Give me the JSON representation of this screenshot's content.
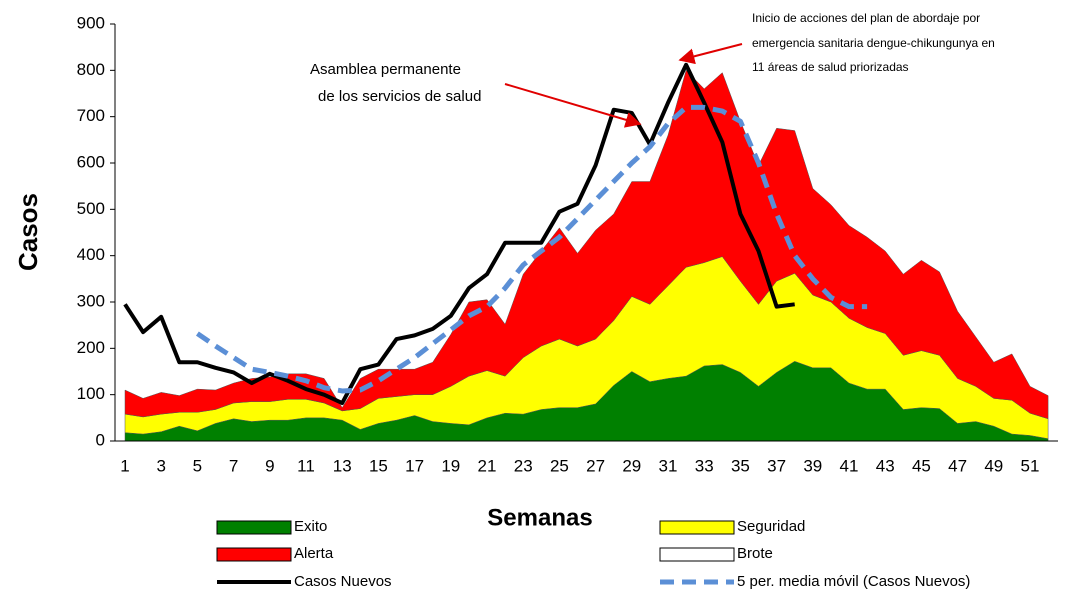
{
  "chart_data": {
    "type": "stacked_area_line",
    "y_label": "Casos",
    "x_label": "Semanas",
    "annotations": [
      [
        "Asamblea permanente",
        "de los servicios de salud"
      ],
      [
        "Inicio de acciones del plan de abordaje por",
        "emergencia sanitaria dengue-chikungunya en",
        "11 áreas de salud priorizadas"
      ]
    ],
    "categories": [
      1,
      null,
      3,
      null,
      5,
      null,
      7,
      null,
      9,
      null,
      11,
      null,
      13,
      null,
      15,
      null,
      17,
      null,
      19,
      null,
      21,
      null,
      23,
      null,
      25,
      null,
      27,
      null,
      29,
      null,
      31,
      null,
      33,
      null,
      35,
      null,
      37,
      null,
      39,
      null,
      41,
      null,
      43,
      null,
      45,
      null,
      47,
      null,
      49,
      null,
      51,
      null
    ],
    "ylim": [
      0,
      900
    ],
    "yticks": [
      0,
      100,
      200,
      300,
      400,
      500,
      600,
      700,
      800,
      900
    ],
    "series": [
      {
        "name": "Exito",
        "color": "#008000",
        "kind": "area",
        "values": [
          18,
          15,
          20,
          32,
          22,
          38,
          48,
          42,
          45,
          45,
          50,
          50,
          45,
          25,
          38,
          45,
          55,
          42,
          38,
          35,
          50,
          60,
          58,
          68,
          72,
          72,
          80,
          120,
          150,
          128,
          135,
          140,
          162,
          165,
          148,
          118,
          148,
          172,
          158,
          158,
          125,
          112,
          112,
          68,
          72,
          70,
          38,
          42,
          32,
          15,
          12,
          5
        ]
      },
      {
        "name": "Seguridad",
        "color": "#ffff00",
        "kind": "area",
        "values": [
          40,
          37,
          38,
          30,
          40,
          30,
          34,
          43,
          40,
          45,
          40,
          32,
          20,
          45,
          54,
          51,
          45,
          58,
          80,
          105,
          102,
          80,
          122,
          137,
          148,
          133,
          140,
          140,
          162,
          167,
          200,
          235,
          223,
          233,
          197,
          177,
          197,
          190,
          157,
          142,
          140,
          133,
          120,
          117,
          123,
          115,
          97,
          76,
          60,
          73,
          48,
          43
        ]
      },
      {
        "name": "Alerta",
        "color": "#ff0000",
        "kind": "area",
        "values": [
          52,
          40,
          47,
          36,
          50,
          42,
          43,
          50,
          53,
          55,
          55,
          53,
          7,
          65,
          63,
          59,
          55,
          70,
          112,
          160,
          153,
          112,
          180,
          205,
          240,
          200,
          235,
          230,
          248,
          265,
          325,
          425,
          375,
          397,
          345,
          300,
          330,
          308,
          230,
          210,
          200,
          195,
          178,
          175,
          195,
          180,
          145,
          107,
          78,
          100,
          58,
          50
        ]
      },
      {
        "name": "Brote",
        "color": "#ffffff",
        "kind": "legend"
      },
      {
        "name": "Casos Nuevos",
        "color": "#000000",
        "kind": "line",
        "values": [
          295,
          235,
          268,
          170,
          170,
          158,
          148,
          125,
          145,
          130,
          112,
          100,
          82,
          155,
          165,
          220,
          228,
          242,
          270,
          330,
          360,
          428,
          428,
          428,
          495,
          512,
          595,
          715,
          708,
          640,
          730,
          812,
          730,
          645,
          490,
          410,
          290,
          295,
          null,
          null,
          null,
          null,
          null,
          null,
          null,
          null,
          null,
          null,
          null,
          null,
          null,
          null
        ]
      },
      {
        "name": "5 per. media móvil (Casos Nuevos)",
        "color": "#5b8fd6",
        "kind": "dashed",
        "values": [
          null,
          null,
          null,
          null,
          232,
          205,
          180,
          155,
          148,
          140,
          130,
          115,
          108,
          110,
          130,
          155,
          180,
          210,
          240,
          270,
          290,
          330,
          380,
          410,
          440,
          480,
          520,
          560,
          600,
          635,
          685,
          720,
          720,
          712,
          690,
          600,
          490,
          400,
          350,
          310,
          290,
          290,
          null,
          null,
          null,
          null,
          null,
          null,
          null,
          null,
          null,
          null
        ]
      }
    ]
  }
}
